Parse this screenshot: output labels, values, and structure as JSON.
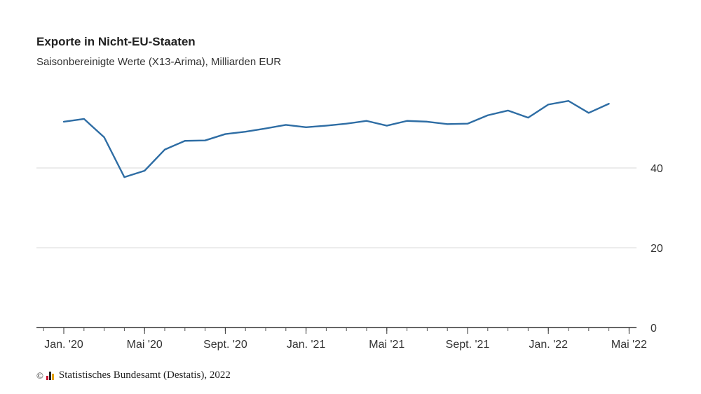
{
  "chart_data": {
    "type": "line",
    "title": "Exporte in Nicht-EU-Staaten",
    "subtitle": "Saisonbereinigte Werte (X13-Arima), Milliarden EUR",
    "x": [
      "2020-01",
      "2020-02",
      "2020-03",
      "2020-04",
      "2020-05",
      "2020-06",
      "2020-07",
      "2020-08",
      "2020-09",
      "2020-10",
      "2020-11",
      "2020-12",
      "2021-01",
      "2021-02",
      "2021-03",
      "2021-04",
      "2021-05",
      "2021-06",
      "2021-07",
      "2021-08",
      "2021-09",
      "2021-10",
      "2021-11",
      "2021-12",
      "2022-01",
      "2022-02",
      "2022-03",
      "2022-04"
    ],
    "series": [
      {
        "values": [
          51.6,
          52.3,
          47.7,
          37.7,
          39.3,
          44.6,
          46.8,
          46.9,
          48.5,
          49.1,
          49.9,
          50.8,
          50.2,
          50.6,
          51.1,
          51.8,
          50.6,
          51.8,
          51.6,
          51.0,
          51.1,
          53.2,
          54.4,
          52.6,
          55.9,
          56.8,
          53.8,
          56.1
        ]
      }
    ],
    "x_ticks": [
      "Jan. '20",
      "Mai '20",
      "Sept. '20",
      "Jan. '21",
      "Mai '21",
      "Sept. '21",
      "Jan. '22",
      "Mai '22"
    ],
    "y_ticks": [
      "0",
      "20",
      "40"
    ],
    "ylim": [
      0,
      60
    ],
    "grid": true,
    "line_color": "#2e6da4"
  },
  "source": {
    "copyright_symbol": "©",
    "text": "Statistisches Bundesamt (Destatis), 2022"
  }
}
